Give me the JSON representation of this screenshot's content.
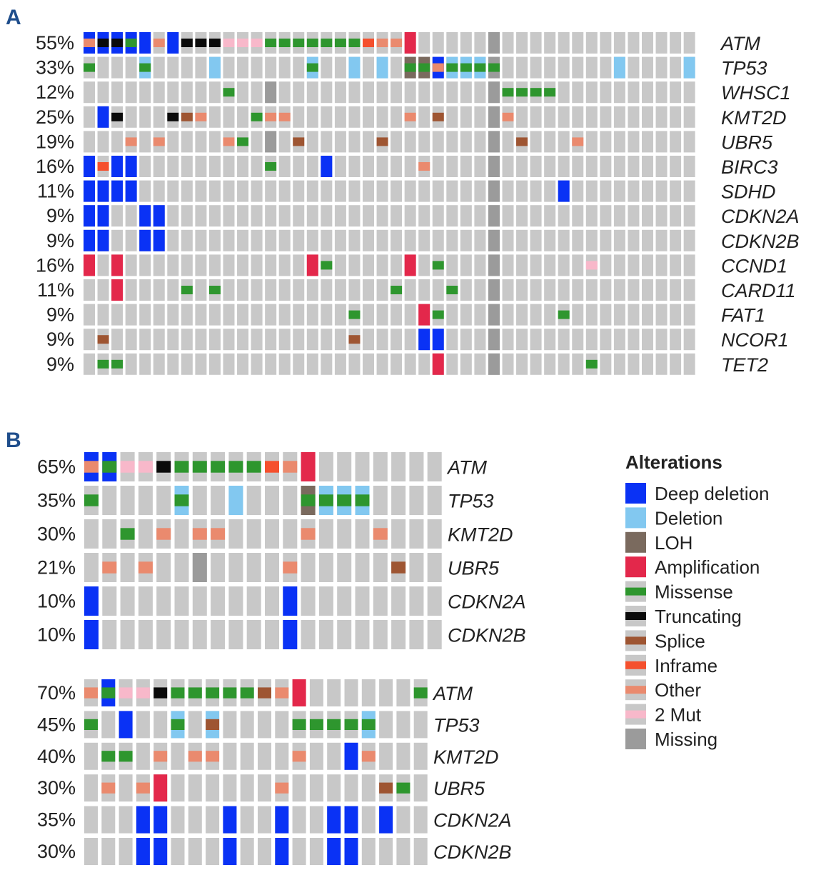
{
  "chart_data": {
    "type": "heatmap",
    "title": "",
    "colors": {
      "bg": "#c8c8c8",
      "D": "#0a32f5",
      "d": "#82c8f0",
      "L": "#7a6a5e",
      "A": "#e3284b",
      "M": "#2e962e",
      "T": "#0a0a0a",
      "S": "#9e5532",
      "I": "#f5502d",
      "O": "#ea8a6e",
      "2": "#f8b8ca",
      "X": "#9b9b9b"
    },
    "legend": {
      "title": "Alterations",
      "items": [
        {
          "code": "D",
          "label": "Deep deletion",
          "style": "full"
        },
        {
          "code": "d",
          "label": "Deletion",
          "style": "full"
        },
        {
          "code": "L",
          "label": "LOH",
          "style": "full"
        },
        {
          "code": "A",
          "label": "Amplification",
          "style": "full"
        },
        {
          "code": "M",
          "label": "Missense",
          "style": "mid"
        },
        {
          "code": "T",
          "label": "Truncating",
          "style": "mid"
        },
        {
          "code": "S",
          "label": "Splice",
          "style": "mid"
        },
        {
          "code": "I",
          "label": "Inframe",
          "style": "mid"
        },
        {
          "code": "O",
          "label": "Other",
          "style": "mid"
        },
        {
          "code": "2",
          "label": "2 Mut",
          "style": "mid"
        },
        {
          "code": "X",
          "label": "Missing",
          "style": "full"
        }
      ]
    },
    "panels": [
      {
        "label": "A",
        "ncols": 44,
        "rows": [
          {
            "pct": "55%",
            "gene": "ATM",
            "cells": {
              "0": "D|O",
              "1": "D|T",
              "2": "D|T",
              "3": "D|M",
              "4": "D",
              "5": "O",
              "6": "D",
              "7": "T",
              "8": "T",
              "9": "T",
              "10": "2",
              "11": "2",
              "12": "2",
              "13": "M",
              "14": "M",
              "15": "M",
              "16": "M",
              "17": "M",
              "18": "M",
              "19": "M",
              "20": "I",
              "21": "O",
              "22": "O",
              "23": "A",
              "29": "X"
            }
          },
          {
            "pct": "33%",
            "gene": "TP53",
            "cells": {
              "0": "M",
              "4": "d|M",
              "9": "d",
              "16": "d|M",
              "19": "d",
              "21": "d",
              "23": "L|M",
              "24": "L|M",
              "25": "D|O",
              "26": "d|M",
              "27": "d|M",
              "28": "d|M",
              "29": "X|M",
              "38": "d",
              "43": "d"
            }
          },
          {
            "pct": "12%",
            "gene": "WHSC1",
            "cells": {
              "10": "M",
              "13": "X",
              "29": "X",
              "30": "M",
              "31": "M",
              "32": "M",
              "33": "M"
            }
          },
          {
            "pct": "25%",
            "gene": "KMT2D",
            "cells": {
              "1": "D",
              "2": "T",
              "6": "T",
              "7": "S",
              "8": "O",
              "12": "M",
              "13": "O",
              "14": "O",
              "23": "O",
              "25": "S",
              "29": "X",
              "30": "O"
            }
          },
          {
            "pct": "19%",
            "gene": "UBR5",
            "cells": {
              "3": "O",
              "5": "O",
              "10": "O",
              "11": "M",
              "13": "X",
              "15": "S",
              "21": "S",
              "29": "X",
              "31": "S",
              "35": "O"
            }
          },
          {
            "pct": "16%",
            "gene": "BIRC3",
            "cells": {
              "0": "D",
              "1": "I",
              "2": "D",
              "3": "D",
              "13": "M",
              "17": "D",
              "24": "O",
              "29": "X"
            }
          },
          {
            "pct": "11%",
            "gene": "SDHD",
            "cells": {
              "0": "D",
              "1": "D",
              "2": "D",
              "3": "D",
              "29": "X",
              "34": "D"
            }
          },
          {
            "pct": "9%",
            "gene": "CDKN2A",
            "cells": {
              "0": "D",
              "1": "D",
              "4": "D",
              "5": "D",
              "29": "X"
            }
          },
          {
            "pct": "9%",
            "gene": "CDKN2B",
            "cells": {
              "0": "D",
              "1": "D",
              "4": "D",
              "5": "D",
              "29": "X"
            }
          },
          {
            "pct": "16%",
            "gene": "CCND1",
            "cells": {
              "0": "A",
              "2": "A",
              "16": "A",
              "17": "M",
              "23": "A",
              "25": "M",
              "29": "X",
              "36": "2"
            }
          },
          {
            "pct": "11%",
            "gene": "CARD11",
            "cells": {
              "2": "A",
              "7": "M",
              "9": "M",
              "22": "M",
              "26": "M",
              "29": "X"
            }
          },
          {
            "pct": "9%",
            "gene": "FAT1",
            "cells": {
              "19": "M",
              "24": "A",
              "25": "M",
              "29": "X",
              "34": "M"
            }
          },
          {
            "pct": "9%",
            "gene": "NCOR1",
            "cells": {
              "1": "S",
              "19": "S",
              "24": "D",
              "25": "D",
              "29": "X"
            }
          },
          {
            "pct": "9%",
            "gene": "TET2",
            "cells": {
              "1": "M",
              "2": "M",
              "25": "A",
              "29": "X",
              "36": "M"
            }
          }
        ]
      },
      {
        "label": "B",
        "ncols": 20,
        "rows": [
          {
            "pct": "65%",
            "gene": "ATM",
            "cells": {
              "0": "D|O",
              "1": "D|M",
              "2": "2",
              "3": "2",
              "4": "T",
              "5": "M",
              "6": "M",
              "7": "M",
              "8": "M",
              "9": "M",
              "10": "I",
              "11": "O",
              "12": "A"
            }
          },
          {
            "pct": "35%",
            "gene": "TP53",
            "cells": {
              "0": "M",
              "5": "d|M",
              "8": "d",
              "12": "L|M",
              "13": "d|M",
              "14": "d|M",
              "15": "d|M"
            }
          },
          {
            "pct": "30%",
            "gene": "KMT2D",
            "cells": {
              "2": "M",
              "4": "O",
              "6": "O",
              "7": "O",
              "12": "O",
              "16": "O"
            }
          },
          {
            "pct": "21%",
            "gene": "UBR5",
            "cells": {
              "1": "O",
              "3": "O",
              "6": "X",
              "11": "O",
              "17": "S"
            }
          },
          {
            "pct": "10%",
            "gene": "CDKN2A",
            "cells": {
              "0": "D",
              "11": "D"
            }
          },
          {
            "pct": "10%",
            "gene": "CDKN2B",
            "cells": {
              "0": "D",
              "11": "D"
            }
          }
        ]
      },
      {
        "label": "",
        "ncols": 20,
        "rows": [
          {
            "pct": "70%",
            "gene": "ATM",
            "cells": {
              "0": "O",
              "1": "D|M",
              "2": "2",
              "3": "2",
              "4": "T",
              "5": "M",
              "6": "M",
              "7": "M",
              "8": "M",
              "9": "M",
              "10": "S",
              "11": "O",
              "12": "A",
              "19": "M"
            }
          },
          {
            "pct": "45%",
            "gene": "TP53",
            "cells": {
              "0": "M",
              "2": "D",
              "5": "d|M",
              "7": "d|S",
              "12": "M",
              "13": "M",
              "14": "M",
              "15": "M",
              "16": "d|M"
            }
          },
          {
            "pct": "40%",
            "gene": "KMT2D",
            "cells": {
              "1": "M",
              "2": "M",
              "4": "O",
              "6": "O",
              "7": "O",
              "12": "O",
              "15": "D",
              "16": "O"
            }
          },
          {
            "pct": "30%",
            "gene": "UBR5",
            "cells": {
              "1": "O",
              "3": "O",
              "4": "A",
              "11": "O",
              "17": "S",
              "18": "M"
            }
          },
          {
            "pct": "35%",
            "gene": "CDKN2A",
            "cells": {
              "3": "D",
              "4": "D",
              "8": "D",
              "11": "D",
              "14": "D",
              "15": "D",
              "17": "D"
            }
          },
          {
            "pct": "30%",
            "gene": "CDKN2B",
            "cells": {
              "3": "D",
              "4": "D",
              "8": "D",
              "11": "D",
              "14": "D",
              "15": "D"
            }
          }
        ]
      }
    ]
  }
}
